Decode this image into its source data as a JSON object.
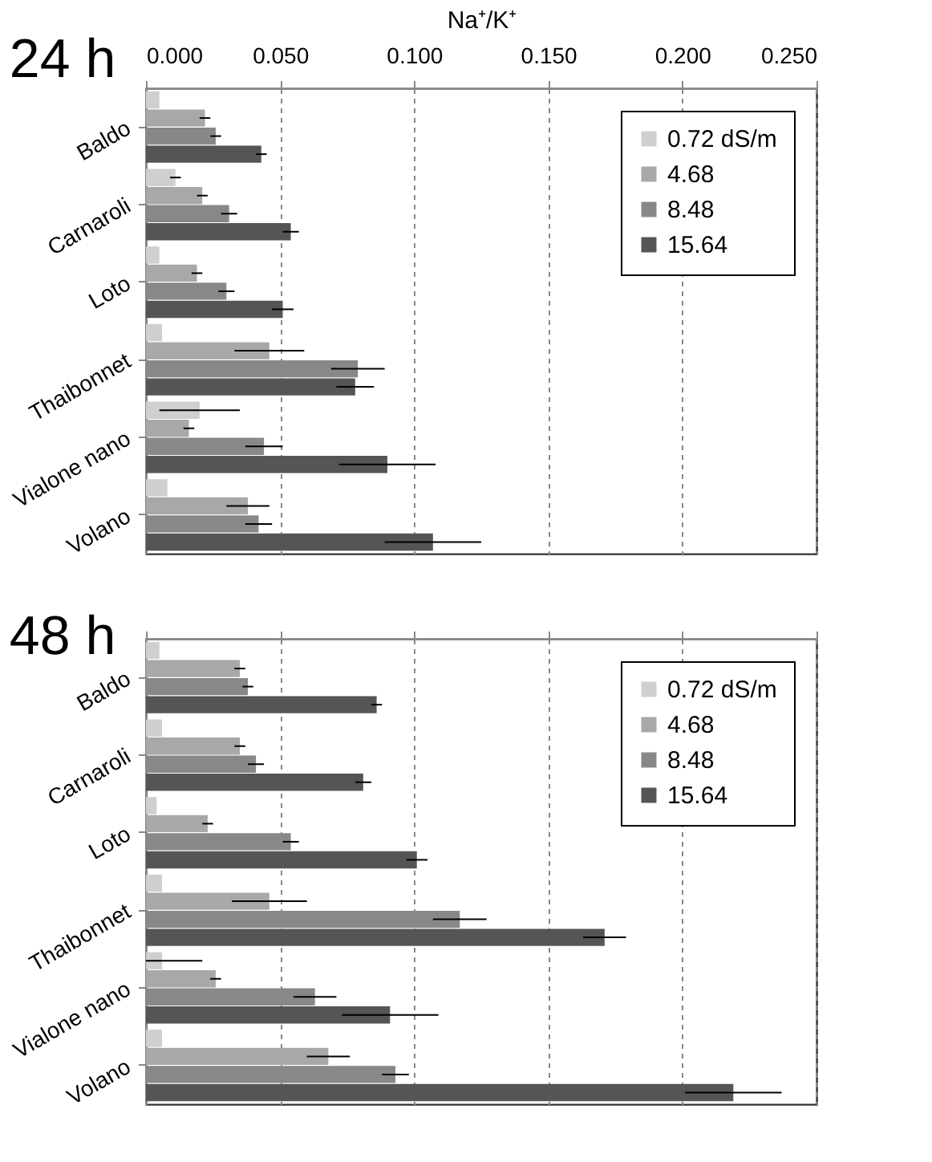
{
  "chart_data": [
    {
      "type": "bar",
      "orientation": "horizontal",
      "title": "24 h",
      "xlabel": "Na⁺/K⁺",
      "categories": [
        "Baldo",
        "Carnaroli",
        "Loto",
        "Thaibonnet",
        "Vialone nano",
        "Volano"
      ],
      "series": [
        {
          "name": "0.72 dS/m",
          "color": "#cfcfcf",
          "values": [
            0.005,
            0.011,
            0.005,
            0.006,
            0.02,
            0.008
          ],
          "errors": [
            null,
            0.002,
            null,
            null,
            0.015,
            null
          ]
        },
        {
          "name": "4.68",
          "color": "#a8a8a8",
          "values": [
            0.022,
            0.021,
            0.019,
            0.046,
            0.016,
            0.038
          ],
          "errors": [
            0.002,
            0.002,
            0.002,
            0.013,
            0.002,
            0.008
          ]
        },
        {
          "name": "8.48",
          "color": "#888888",
          "values": [
            0.026,
            0.031,
            0.03,
            0.079,
            0.044,
            0.042
          ],
          "errors": [
            0.002,
            0.003,
            0.003,
            0.01,
            0.007,
            0.005
          ]
        },
        {
          "name": "15.64",
          "color": "#555555",
          "values": [
            0.043,
            0.054,
            0.051,
            0.078,
            0.09,
            0.107
          ],
          "errors": [
            0.002,
            0.003,
            0.004,
            0.007,
            0.018,
            0.018
          ]
        }
      ],
      "xlim": [
        0,
        0.25
      ],
      "xticks": [
        {
          "value": 0,
          "label": "0.000"
        },
        {
          "value": 0.05,
          "label": "0.050"
        },
        {
          "value": 0.1,
          "label": "0.100"
        },
        {
          "value": 0.15,
          "label": "0.150"
        },
        {
          "value": 0.2,
          "label": "0.200"
        },
        {
          "value": 0.25,
          "label": "0.250"
        }
      ],
      "grid": "x",
      "legend": "top right"
    },
    {
      "type": "bar",
      "orientation": "horizontal",
      "title": "48 h",
      "categories": [
        "Baldo",
        "Carnaroli",
        "Loto",
        "Thaibonnet",
        "Vialone nano",
        "Volano"
      ],
      "series": [
        {
          "name": "0.72 dS/m",
          "color": "#cfcfcf",
          "values": [
            0.005,
            0.006,
            0.004,
            0.006,
            0.006,
            0.006
          ],
          "errors": [
            null,
            null,
            null,
            null,
            [
              0,
              0.021
            ],
            null
          ]
        },
        {
          "name": "4.68",
          "color": "#a8a8a8",
          "values": [
            0.035,
            0.035,
            0.023,
            0.046,
            0.026,
            0.068
          ],
          "errors": [
            0.002,
            0.002,
            0.002,
            0.014,
            0.002,
            0.008
          ]
        },
        {
          "name": "8.48",
          "color": "#888888",
          "values": [
            0.038,
            0.041,
            0.054,
            0.117,
            0.063,
            0.093
          ],
          "errors": [
            0.002,
            0.003,
            0.003,
            0.01,
            0.008,
            0.005
          ]
        },
        {
          "name": "15.64",
          "color": "#555555",
          "values": [
            0.086,
            0.081,
            0.101,
            0.171,
            0.091,
            0.219
          ],
          "errors": [
            0.002,
            0.003,
            0.004,
            0.008,
            0.018,
            0.018
          ]
        }
      ],
      "xlim": [
        0,
        0.25
      ],
      "xticks": [
        0,
        0.05,
        0.1,
        0.15,
        0.2,
        0.25
      ],
      "tick_labels": "y",
      "grid": "x",
      "legend": "top right"
    }
  ]
}
